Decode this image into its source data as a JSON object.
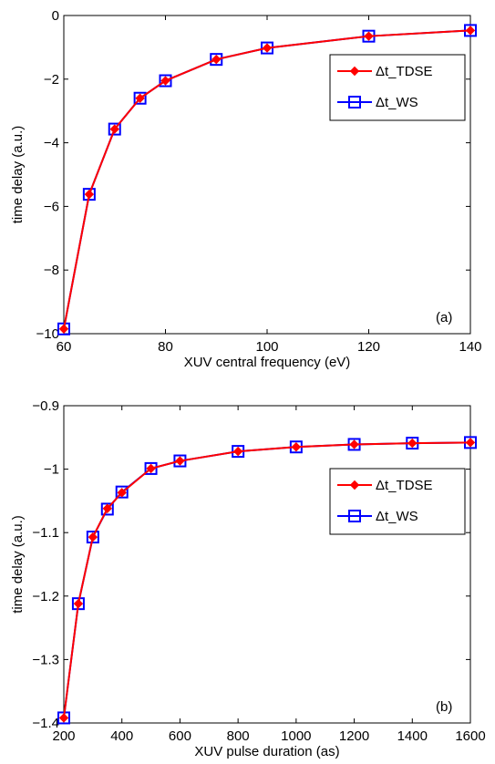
{
  "chart_data": [
    {
      "type": "line",
      "panel_label": "(a)",
      "xlabel": "XUV central frequency (eV)",
      "ylabel": "time delay (a.u.)",
      "xlim": [
        60,
        140
      ],
      "ylim": [
        -10,
        0
      ],
      "xticks": [
        60,
        80,
        100,
        120,
        140
      ],
      "yticks": [
        -10,
        -8,
        -6,
        -4,
        -2,
        0
      ],
      "xtick_labels": [
        "60",
        "80",
        "100",
        "120",
        "140"
      ],
      "ytick_labels": [
        "−10",
        "−8",
        "−6",
        "−4",
        "−2",
        "0"
      ],
      "x": [
        60,
        65,
        70,
        75,
        80,
        90,
        100,
        120,
        140
      ],
      "series": [
        {
          "name": "Δt_TDSE",
          "color": "#ff0000",
          "marker": "diamond",
          "values": [
            -9.85,
            -5.62,
            -3.57,
            -2.6,
            -2.05,
            -1.38,
            -1.02,
            -0.65,
            -0.47
          ]
        },
        {
          "name": "Δt_WS",
          "color": "#0000ff",
          "marker": "square",
          "values": [
            -9.85,
            -5.62,
            -3.57,
            -2.6,
            -2.05,
            -1.38,
            -1.02,
            -0.65,
            -0.47
          ]
        }
      ],
      "legend_position": "top-right",
      "grid": false
    },
    {
      "type": "line",
      "panel_label": "(b)",
      "xlabel": "XUV pulse duration (as)",
      "ylabel": "time delay (a.u.)",
      "xlim": [
        200,
        1600
      ],
      "ylim": [
        -1.4,
        -0.9
      ],
      "xticks": [
        200,
        400,
        600,
        800,
        1000,
        1200,
        1400,
        1600
      ],
      "yticks": [
        -1.4,
        -1.3,
        -1.2,
        -1.1,
        -1.0,
        -0.9
      ],
      "xtick_labels": [
        "200",
        "400",
        "600",
        "800",
        "1000",
        "1200",
        "1400",
        "1600"
      ],
      "ytick_labels": [
        "−1.4",
        "−1.3",
        "−1.2",
        "−1.1",
        "−1",
        "−0.9"
      ],
      "x": [
        200,
        250,
        300,
        350,
        400,
        500,
        600,
        800,
        1000,
        1200,
        1400,
        1600
      ],
      "series": [
        {
          "name": "Δt_TDSE",
          "color": "#ff0000",
          "marker": "diamond",
          "values": [
            -1.392,
            -1.212,
            -1.107,
            -1.062,
            -1.037,
            -0.999,
            -0.987,
            -0.972,
            -0.965,
            -0.961,
            -0.959,
            -0.958
          ]
        },
        {
          "name": "Δt_WS",
          "color": "#0000ff",
          "marker": "square",
          "values": [
            -1.392,
            -1.212,
            -1.107,
            -1.063,
            -1.036,
            -0.999,
            -0.987,
            -0.972,
            -0.965,
            -0.961,
            -0.959,
            -0.958
          ]
        }
      ],
      "legend_position": "top-right",
      "grid": false
    }
  ]
}
